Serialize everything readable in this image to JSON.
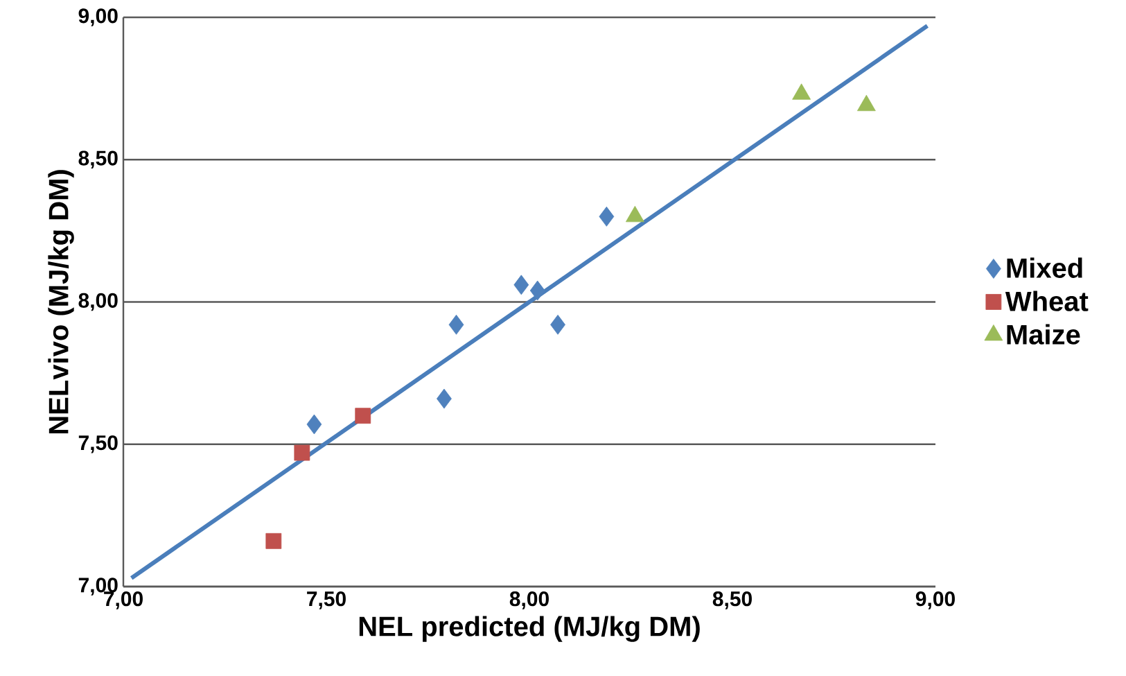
{
  "chart_data": {
    "type": "scatter",
    "xlabel": "NEL predicted (MJ/kg DM)",
    "ylabel": "NELvivo (MJ/kg DM)",
    "xlim": [
      7,
      9
    ],
    "ylim": [
      7,
      9
    ],
    "xticks": [
      {
        "value": 7,
        "label": "7,00"
      },
      {
        "value": 7.5,
        "label": "7,50"
      },
      {
        "value": 8,
        "label": "8,00"
      },
      {
        "value": 8.5,
        "label": "8,50"
      },
      {
        "value": 9,
        "label": "9,00"
      }
    ],
    "yticks": [
      {
        "value": 7,
        "label": "7,00"
      },
      {
        "value": 7.5,
        "label": "7,50"
      },
      {
        "value": 8,
        "label": "8,00"
      },
      {
        "value": 8.5,
        "label": "8,50"
      },
      {
        "value": 9,
        "label": "9,00"
      }
    ],
    "grid": "y",
    "legend": "right",
    "series": [
      {
        "name": "Mixed",
        "color": "#4f81bd",
        "marker": "diamond",
        "x": [
          7.47,
          7.82,
          7.79,
          7.98,
          8.02,
          8.07,
          8.19
        ],
        "values": [
          7.57,
          7.92,
          7.66,
          8.06,
          8.04,
          7.92,
          8.3
        ]
      },
      {
        "name": "Wheat",
        "color": "#c0504d",
        "marker": "square",
        "x": [
          7.37,
          7.44,
          7.59
        ],
        "values": [
          7.16,
          7.47,
          7.6
        ]
      },
      {
        "name": "Maize",
        "color": "#9bbb59",
        "marker": "triangle",
        "x": [
          8.26,
          8.67,
          8.83
        ],
        "values": [
          8.3,
          8.73,
          8.69
        ]
      },
      {
        "type": "line",
        "color": "#4a7ebb",
        "marker": "none",
        "x": [
          7.02,
          8.98
        ],
        "values": [
          7.03,
          8.97
        ]
      }
    ]
  }
}
